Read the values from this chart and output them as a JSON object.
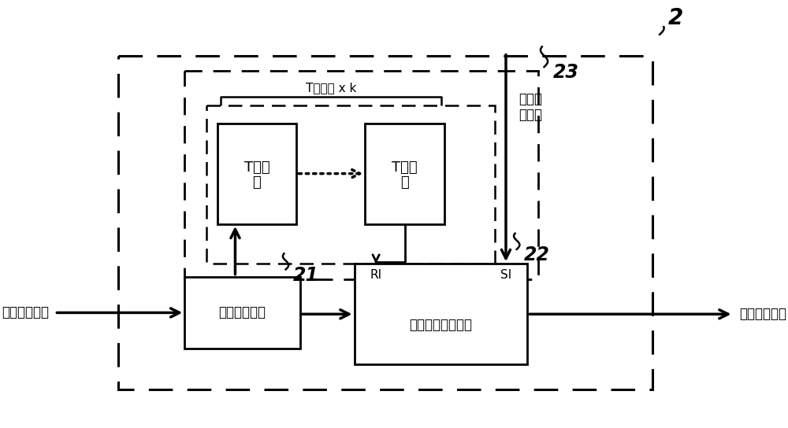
{
  "bg_color": "#ffffff",
  "line_color": "#000000",
  "label_t_group": "T触发器 x k",
  "label_control": "控制脉\n冲信号",
  "label_input": "高频时钟信号",
  "label_output": "时钟控制信号",
  "label_21": "21",
  "label_22": "22",
  "label_23": "23",
  "label_2": "2",
  "label_RI": "RI",
  "label_SI": "SI",
  "tf1_label_line1": "T触发",
  "tf1_label_line2": "器",
  "tf2_label_line1": "T触发",
  "tf2_label_line2": "器",
  "dv_label": "第二分流单元",
  "ndro_label": "非破坏性读出单元"
}
